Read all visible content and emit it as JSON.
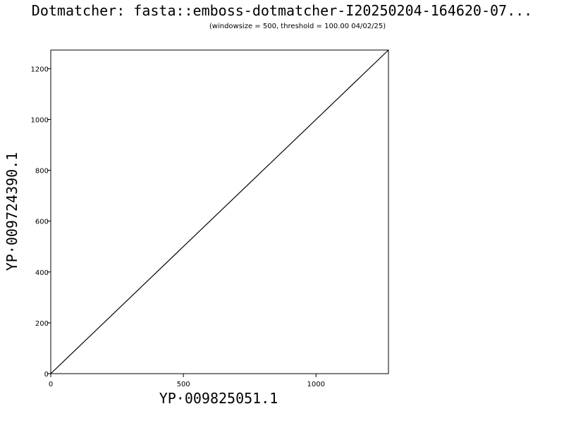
{
  "chart_data": {
    "type": "line",
    "title": "Dotmatcher: fasta::emboss-dotmatcher-I20250204-164620-07...",
    "subtitle": "(windowsize = 500, threshold = 100.00  04/02/25)",
    "xlabel": "YP·009825051.1",
    "ylabel": "YP·009724390.1",
    "xlim": [
      0,
      1273
    ],
    "ylim": [
      0,
      1273
    ],
    "xticks": [
      0,
      500,
      1000
    ],
    "yticks": [
      0,
      200,
      400,
      600,
      800,
      1000,
      1200
    ],
    "grid": false,
    "series": [
      {
        "x": [
          0,
          1273
        ],
        "y": [
          0,
          1273
        ]
      }
    ]
  }
}
